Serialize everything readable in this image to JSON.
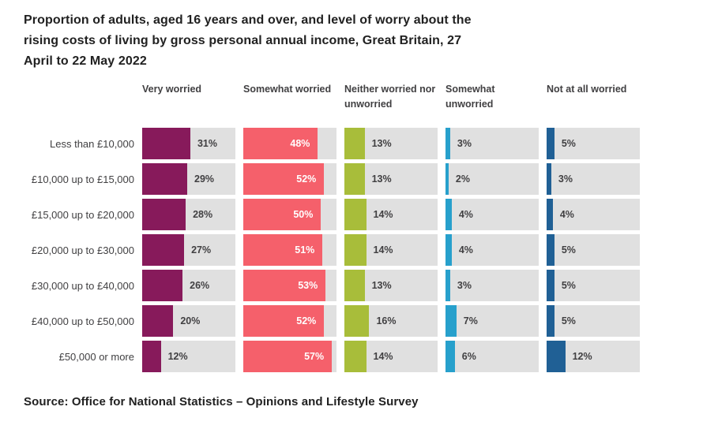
{
  "chart_data": {
    "type": "bar",
    "orientation": "horizontal",
    "unit": "%",
    "scale_max": 60,
    "grid": false,
    "legend_position": "column-headers-top",
    "title": "Proportion of adults, aged 16 years and over, and level of worry about the rising costs of living by gross personal annual income, Great Britain, 27 April to 22 May 2022",
    "title_lines": [
      "Proportion of adults, aged 16 years and over, and level of worry about the",
      "rising costs of living by gross personal annual income, Great Britain, 27",
      "April to 22 May 2022"
    ],
    "source": "Source: Office for National Statistics – Opinions and Lifestyle Survey",
    "categories": [
      "Less than £10,000",
      "£10,000 up to £15,000",
      "£15,000 up to £20,000",
      "£20,000 up to £30,000",
      "£30,000 up to £40,000",
      "£40,000 up to £50,000",
      "£50,000 or more"
    ],
    "series": [
      {
        "name": "Very worried",
        "color": "#871A5B",
        "label_inside": false,
        "values": [
          31,
          29,
          28,
          27,
          26,
          20,
          12
        ]
      },
      {
        "name": "Somewhat worried",
        "color": "#F5606B",
        "label_inside": true,
        "values": [
          48,
          52,
          50,
          51,
          53,
          52,
          57
        ]
      },
      {
        "name": "Neither worried nor unworried",
        "color": "#A8BD3A",
        "label_inside": false,
        "values": [
          13,
          13,
          14,
          14,
          13,
          16,
          14
        ]
      },
      {
        "name": "Somewhat unworried",
        "color": "#27A0CC",
        "label_inside": false,
        "values": [
          3,
          2,
          4,
          4,
          3,
          7,
          6
        ]
      },
      {
        "name": "Not at all worried",
        "color": "#206095",
        "label_inside": false,
        "values": [
          5,
          3,
          4,
          5,
          5,
          5,
          12
        ]
      }
    ],
    "colors": {
      "track": "#E0E0E0",
      "title_text": "#212121",
      "label_text": "#414042",
      "inside_value_text": "#FFFFFF"
    }
  }
}
